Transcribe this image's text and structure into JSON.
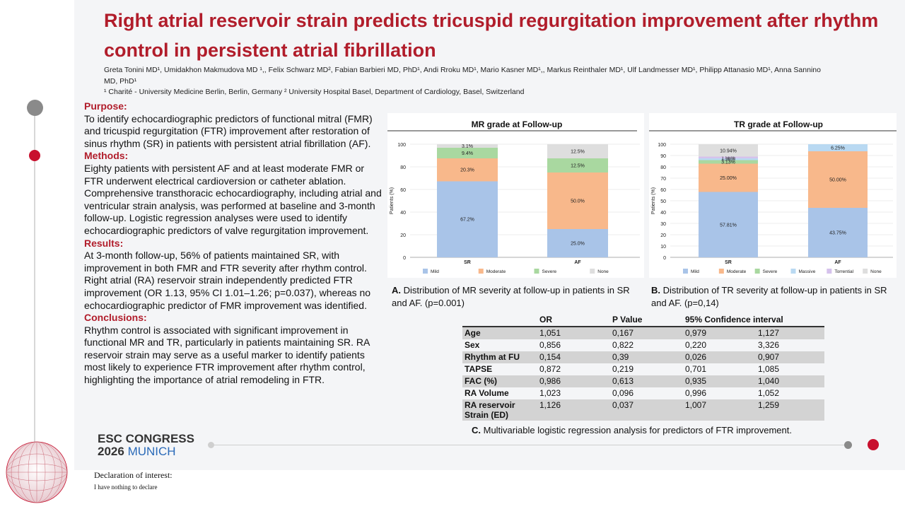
{
  "title": "Right atrial reservoir strain predicts tricuspid regurgitation improvement after rhythm control in persistent atrial fibrillation",
  "authors": "Greta Tonini MD¹, Umidakhon Makmudova MD ¹,, Felix Schwarz MD², Fabian Barbieri MD, PhD¹, Andi Rroku MD¹, Mario Kasner MD¹,, Markus Reinthaler MD¹, Ulf Landmesser MD¹, Philipp Attanasio MD¹, Anna Sannino MD, PhD¹",
  "affiliations": "¹ Charité - University Medicine Berlin, Berlin, Germany ² University Hospital Basel, Department of Cardiology, Basel, Switzerland",
  "sections": {
    "purpose_h": "Purpose:",
    "purpose": "To identify echocardiographic predictors of functional mitral (FMR) and tricuspid regurgitation (FTR) improvement after restoration of sinus rhythm (SR) in patients with persistent atrial fibrillation (AF).",
    "methods_h": "Methods:",
    "methods": "Eighty patients with persistent AF and at least moderate FMR or FTR underwent electrical cardioversion or catheter ablation. Comprehensive transthoracic echocardiography, including atrial and ventricular strain analysis, was performed at baseline and 3-month follow-up. Logistic regression analyses were used to identify echocardiographic predictors of valve regurgitation improvement.",
    "results_h": "Results:",
    "results": "At 3-month follow-up, 56% of patients maintained SR, with improvement in both FMR and FTR severity after rhythm control. Right atrial (RA) reservoir strain independently predicted FTR improvement (OR 1.13, 95% CI 1.01–1.26; p=0.037), whereas no echocardiographic predictor of FMR improvement was identified.",
    "conclusions_h": "Conclusions:",
    "conclusions": "Rhythm control is associated with significant improvement in functional MR and TR, particularly in patients maintaining SR. RA reservoir strain may serve as a useful marker to identify patients most likely to experience FTR improvement after rhythm control, highlighting the importance of atrial remodeling in FTR."
  },
  "captions": {
    "a_label": "A.",
    "a_text": " Distribution of MR severity at follow-up in patients in SR and AF. (p=0.001)",
    "b_label": "B.",
    "b_text": " Distribution of TR severity at follow-up in patients in SR and AF. (p=0,14)",
    "c_label": "C.",
    "c_text": " Multivariable logistic regression analysis for predictors of FTR improvement."
  },
  "table": {
    "headers": [
      "",
      "OR",
      "P Value",
      "95% Confidence interval",
      ""
    ],
    "rows": [
      [
        "Age",
        "1,051",
        "0,167",
        "0,979",
        "1,127"
      ],
      [
        "Sex",
        "0,856",
        "0,822",
        "0,220",
        "3,326"
      ],
      [
        "Rhythm at FU",
        "0,154",
        "0,39",
        "0,026",
        "0,907"
      ],
      [
        "TAPSE",
        "0,872",
        "0,219",
        "0,701",
        "1,085"
      ],
      [
        "FAC (%)",
        "0,986",
        "0,613",
        "0,935",
        "1,040"
      ],
      [
        "RA Volume",
        "1,023",
        "0,096",
        "0,996",
        "1,052"
      ],
      [
        "RA reservoir Strain (ED)",
        "1,126",
        "0,037",
        "1,007",
        "1,259"
      ]
    ]
  },
  "footer": {
    "congress_line1": "ESC CONGRESS",
    "congress_year": "2026",
    "congress_city": "MUNICH",
    "declaration_h": "Declaration of interest:",
    "declaration": "I have nothing to declare"
  },
  "colors": {
    "accent": "#b11d2b",
    "mild": "#a9c4e8",
    "moderate": "#f8b88b",
    "severe": "#a9d8a0",
    "none": "#dedede",
    "massive": "#b9d9f2",
    "torrential": "#d5c2ec"
  },
  "chart_data": [
    {
      "type": "bar",
      "stacked": true,
      "title": "MR grade at Follow-up",
      "ylabel": "Patients (%)",
      "ylim": [
        0,
        100
      ],
      "yticks": [
        0,
        20,
        40,
        60,
        80,
        100
      ],
      "categories": [
        "SR",
        "AF"
      ],
      "series": [
        {
          "name": "Mild",
          "color": "#a9c4e8",
          "values": [
            67.2,
            25.0
          ],
          "labels": [
            "67.2%",
            "25.0%"
          ]
        },
        {
          "name": "Moderate",
          "color": "#f8b88b",
          "values": [
            20.3,
            50.0
          ],
          "labels": [
            "20.3%",
            "50.0%"
          ]
        },
        {
          "name": "Severe",
          "color": "#a9d8a0",
          "values": [
            9.4,
            12.5
          ],
          "labels": [
            "9.4%",
            "12.5%"
          ]
        },
        {
          "name": "None",
          "color": "#dedede",
          "values": [
            3.1,
            12.5
          ],
          "labels": [
            "3.1%",
            "12.5%"
          ]
        }
      ],
      "legend": "bottom"
    },
    {
      "type": "bar",
      "stacked": true,
      "title": "TR grade at Follow-up",
      "ylabel": "Patients (%)",
      "ylim": [
        0,
        100
      ],
      "yticks": [
        0,
        10,
        20,
        30,
        40,
        50,
        60,
        70,
        80,
        90,
        100
      ],
      "categories": [
        "SR",
        "AF"
      ],
      "series": [
        {
          "name": "Mild",
          "color": "#a9c4e8",
          "values": [
            57.81,
            43.75
          ],
          "labels": [
            "57.81%",
            "43.75%"
          ]
        },
        {
          "name": "Moderate",
          "color": "#f8b88b",
          "values": [
            25.0,
            50.0
          ],
          "labels": [
            "25.00%",
            "50.00%"
          ]
        },
        {
          "name": "Severe",
          "color": "#a9d8a0",
          "values": [
            3.13,
            0
          ],
          "labels": [
            "3.13%",
            ""
          ]
        },
        {
          "name": "Massive",
          "color": "#b9d9f2",
          "values": [
            1.56,
            6.25
          ],
          "labels": [
            "1.56%",
            "6.25%"
          ]
        },
        {
          "name": "Torrential",
          "color": "#d5c2ec",
          "values": [
            1.56,
            0
          ],
          "labels": [
            "1.56%",
            ""
          ]
        },
        {
          "name": "None",
          "color": "#dedede",
          "values": [
            10.94,
            0
          ],
          "labels": [
            "10.94%",
            ""
          ]
        }
      ],
      "legend": "bottom"
    }
  ]
}
